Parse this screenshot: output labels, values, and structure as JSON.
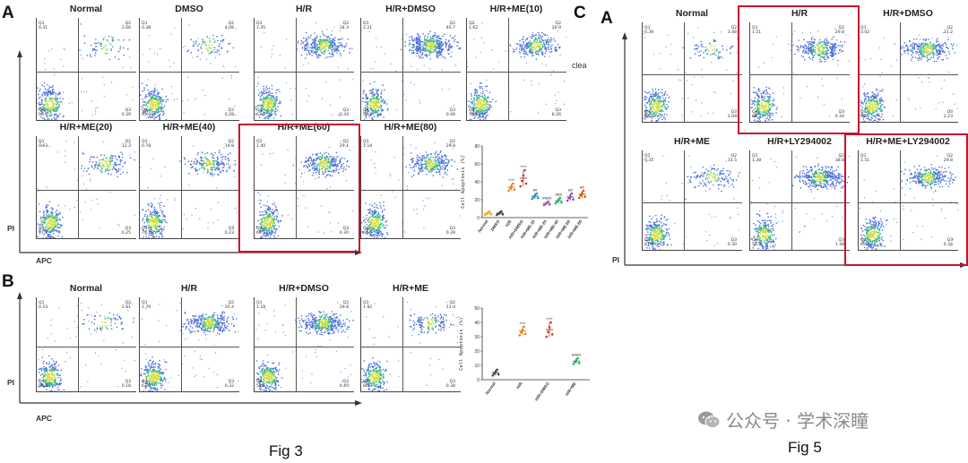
{
  "panels": {
    "fig3A": {
      "letter": "A"
    },
    "fig3B": {
      "letter": "B"
    },
    "fig5C": {
      "letter": "C"
    },
    "fig5A": {
      "letter": "A"
    }
  },
  "axes": {
    "y_label": "PI",
    "x_label": "APC"
  },
  "clipped_text": "clea",
  "fig3A_plots": [
    {
      "title": "Normal",
      "q1": "Q1",
      "q1v": "0.31",
      "q2": "Q2",
      "q2v": "2.66",
      "q3": "Q3",
      "q3v": "0.39",
      "q4": "Q4",
      "q4v": "96.6"
    },
    {
      "title": "DMSO",
      "q1": "Q1",
      "q1v": "0.38",
      "q2": "Q2",
      "q2v": "4.08",
      "q3": "Q3",
      "q3v": "0.28",
      "q4": "Q4",
      "q4v": "95.4"
    },
    {
      "title": "H/R",
      "q1": "Q1",
      "q1v": "1.35",
      "q2": "Q2",
      "q2v": "34.3",
      "q3": "Q3",
      "q3v": "0.34",
      "q4": "Q4",
      "q4v": "63.8"
    },
    {
      "title": "H/R+DMSO",
      "q1": "Q1",
      "q1v": "2.21",
      "q2": "Q2",
      "q2v": "46.7",
      "q3": "Q3",
      "q3v": "0.46",
      "q4": "Q4",
      "q4v": "50.7"
    },
    {
      "title": "H/R+ME(10)",
      "q1": "Q1",
      "q1v": "1.62",
      "q2": "Q2",
      "q2v": "26.9",
      "q3": "Q3",
      "q3v": "0.26",
      "q4": "Q4",
      "q4v": "71.0"
    },
    {
      "title": "H/R+ME(20)",
      "q1": "Q1",
      "q1v": "0.63",
      "q2": "Q2",
      "q2v": "12.2",
      "q3": "Q3",
      "q3v": "0.25",
      "q4": "Q4",
      "q4v": "87.0"
    },
    {
      "title": "H/R+ME(40)",
      "q1": "Q1",
      "q1v": "0.78",
      "q2": "Q2",
      "q2v": "19.8",
      "q3": "Q3",
      "q3v": "0.23",
      "q4": "Q4",
      "q4v": "79.2"
    },
    {
      "title": "H/R+ME(60)",
      "q1": "Q1",
      "q1v": "1.40",
      "q2": "Q2",
      "q2v": "29.1",
      "q3": "Q3",
      "q3v": "0.30",
      "q4": "Q4",
      "q4v": "69.2"
    },
    {
      "title": "H/R+ME(80)",
      "q1": "Q1",
      "q1v": "1.14",
      "q2": "Q2",
      "q2v": "29.8",
      "q3": "Q3",
      "q3v": "0.39",
      "q4": "Q4",
      "q4v": "68.6"
    }
  ],
  "fig3B_plots": [
    {
      "title": "Normal",
      "q1": "Q1",
      "q1v": "0.53",
      "q2": "Q2",
      "q2v": "2.81",
      "q3": "Q3",
      "q3v": "0.18",
      "q4": "Q4",
      "q4v": "96.4"
    },
    {
      "title": "H/R",
      "q1": "Q1",
      "q1v": "1.79",
      "q2": "Q2",
      "q2v": "35.4",
      "q3": "Q3",
      "q3v": "0.32",
      "q4": "Q4",
      "q4v": "62.5"
    },
    {
      "title": "H/R+DMSO",
      "q1": "Q1",
      "q1v": "1.18",
      "q2": "Q2",
      "q2v": "39.8",
      "q3": "Q3",
      "q3v": "0.45",
      "q4": "Q4",
      "q4v": "58.6"
    },
    {
      "title": "H/R+ME",
      "q1": "Q1",
      "q1v": "1.92",
      "q2": "Q2",
      "q2v": "11.4",
      "q3": "Q3",
      "q3v": "0.38",
      "q4": "Q4",
      "q4v": "86.3"
    }
  ],
  "fig5_plots": [
    {
      "title": "Normal",
      "q1": "Q1",
      "q1v": "0.39",
      "q2": "Q2",
      "q2v": "3.48",
      "q3": "Q3",
      "q3v": "2.04",
      "q4": "Q4",
      "q4v": "94.1"
    },
    {
      "title": "H/R",
      "q1": "Q1",
      "q1v": "1.51",
      "q2": "Q2",
      "q2v": "29.8",
      "q3": "Q3",
      "q3v": "0.34",
      "q4": "Q4",
      "q4v": "69.2"
    },
    {
      "title": "H/R+DMSO",
      "q1": "Q1",
      "q1v": "3.02",
      "q2": "Q2",
      "q2v": "31.2",
      "q3": "Q3",
      "q3v": "2.23",
      "q4": "Q4",
      "q4v": "63.6"
    },
    {
      "title": "H/R+ME",
      "q1": "Q1",
      "q1v": "0.31",
      "q2": "Q2",
      "q2v": "11.5",
      "q3": "Q3",
      "q3v": "0.30",
      "q4": "Q4",
      "q4v": "87.9"
    },
    {
      "title": "H/R+LY294002",
      "q1": "Q1",
      "q1v": "1.38",
      "q2": "Q2",
      "q2v": "38.8",
      "q3": "Q3",
      "q3v": "1.38",
      "q4": "Q4",
      "q4v": "58.4"
    },
    {
      "title": "H/R+ME+LY294002",
      "q1": "Q1",
      "q1v": "1.51",
      "q2": "Q2",
      "q2v": "29.8",
      "q3": "Q3",
      "q3v": "0.34",
      "q4": "Q4",
      "q4v": "69.2"
    }
  ],
  "chart_data": [
    {
      "type": "scatter",
      "ylabel": "Cell Apoptosis (%)",
      "ylim": [
        0,
        80
      ],
      "yticks": [
        "0",
        "20",
        "40",
        "60",
        "80"
      ],
      "categories": [
        "Normal",
        "DMSO",
        "H/R",
        "H/R+DMSO",
        "H/R+ME-10",
        "H/R+ME-20",
        "H/R+ME-40",
        "H/R+ME-60",
        "H/R+ME-80"
      ],
      "means": [
        5,
        5,
        34,
        44,
        24,
        16,
        19,
        23,
        26
      ],
      "errors": [
        2,
        2,
        4,
        9,
        3,
        2,
        3,
        4,
        4
      ],
      "significance": [
        "",
        "",
        "****",
        "****",
        "##",
        "####",
        "###",
        "##",
        "##"
      ],
      "colors": [
        "#e0b020",
        "#444444",
        "#e67e22",
        "#c0392b",
        "#2e86c1",
        "#9b59b6",
        "#27ae60",
        "#8e44ad",
        "#d35400"
      ]
    },
    {
      "type": "scatter",
      "ylabel": "Cell Apoptosis (%)",
      "ylim": [
        0,
        50
      ],
      "yticks": [
        "0",
        "10",
        "20",
        "30",
        "40",
        "50"
      ],
      "categories": [
        "Normal",
        "H/R",
        "H/R+DMSO",
        "H/R+ME"
      ],
      "means": [
        5,
        34,
        35,
        13
      ],
      "errors": [
        2,
        3,
        5,
        2
      ],
      "significance": [
        "",
        "****",
        "****",
        "####"
      ],
      "colors": [
        "#444444",
        "#e67e22",
        "#c0392b",
        "#27ae60"
      ]
    }
  ],
  "captions": {
    "fig3": "Fig 3",
    "fig5": "Fig 5"
  },
  "watermark": {
    "icon": "wechat-icon",
    "text": "公众号 · 学术深瞳"
  }
}
